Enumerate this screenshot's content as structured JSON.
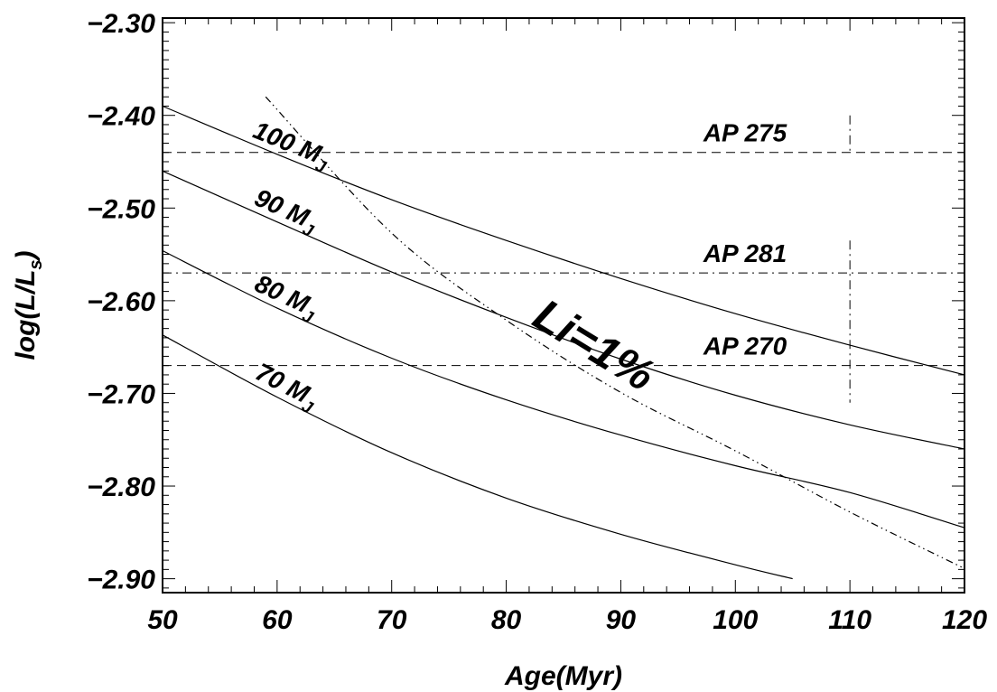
{
  "chart_data": {
    "type": "line",
    "xlabel": "Age(Myr)",
    "ylabel": "log(L/L",
    "ylabel_sub": "s",
    "ylabel_close": ")",
    "xlim": [
      50,
      120
    ],
    "ylim": [
      -2.915,
      -2.295
    ],
    "x_ticks": [
      50,
      60,
      70,
      80,
      90,
      100,
      110,
      120
    ],
    "x_tick_labels": [
      "50",
      "60",
      "70",
      "80",
      "90",
      "100",
      "110",
      "120"
    ],
    "y_ticks": [
      -2.3,
      -2.4,
      -2.5,
      -2.6,
      -2.7,
      -2.8,
      -2.9
    ],
    "y_tick_labels": [
      "−2.30",
      "−2.40",
      "−2.50",
      "−2.60",
      "−2.70",
      "−2.80",
      "−2.90"
    ],
    "grid": false,
    "series": [
      {
        "name": "100 M",
        "name_sub": "J",
        "x": [
          50,
          60,
          70,
          80,
          90,
          100,
          110,
          120
        ],
        "y": [
          -2.39,
          -2.442,
          -2.491,
          -2.535,
          -2.576,
          -2.614,
          -2.648,
          -2.68
        ],
        "label_at": 61
      },
      {
        "name": "90 M",
        "name_sub": "J",
        "x": [
          50,
          60,
          70,
          80,
          90,
          100,
          110,
          120
        ],
        "y": [
          -2.46,
          -2.515,
          -2.569,
          -2.618,
          -2.663,
          -2.702,
          -2.734,
          -2.76
        ],
        "label_at": 60.5
      },
      {
        "name": "80 M",
        "name_sub": "J",
        "x": [
          50,
          60,
          70,
          80,
          90,
          100,
          110,
          120
        ],
        "y": [
          -2.546,
          -2.608,
          -2.662,
          -2.707,
          -2.745,
          -2.778,
          -2.807,
          -2.845
        ],
        "label_at": 60.5
      },
      {
        "name": "70 M",
        "name_sub": "J",
        "x": [
          50,
          60,
          70,
          80,
          90,
          100,
          105
        ],
        "y": [
          -2.637,
          -2.704,
          -2.764,
          -2.813,
          -2.852,
          -2.885,
          -2.9
        ],
        "label_at": 60.5
      }
    ],
    "lithium_line": {
      "label": "Li=1%",
      "x": [
        59,
        70,
        80,
        90,
        100,
        110,
        120
      ],
      "y": [
        -2.38,
        -2.527,
        -2.621,
        -2.699,
        -2.762,
        -2.828,
        -2.889
      ]
    },
    "clusters": [
      {
        "name": "AP 275",
        "log_l": -2.44,
        "style": "dashed"
      },
      {
        "name": "AP 281",
        "log_l": -2.57,
        "style": "dashdot"
      },
      {
        "name": "AP 270",
        "log_l": -2.67,
        "style": "dashed"
      }
    ],
    "age_marker": {
      "x": 110,
      "segments": [
        [
          -2.4,
          -2.44
        ],
        [
          -2.535,
          -2.71
        ]
      ]
    }
  }
}
